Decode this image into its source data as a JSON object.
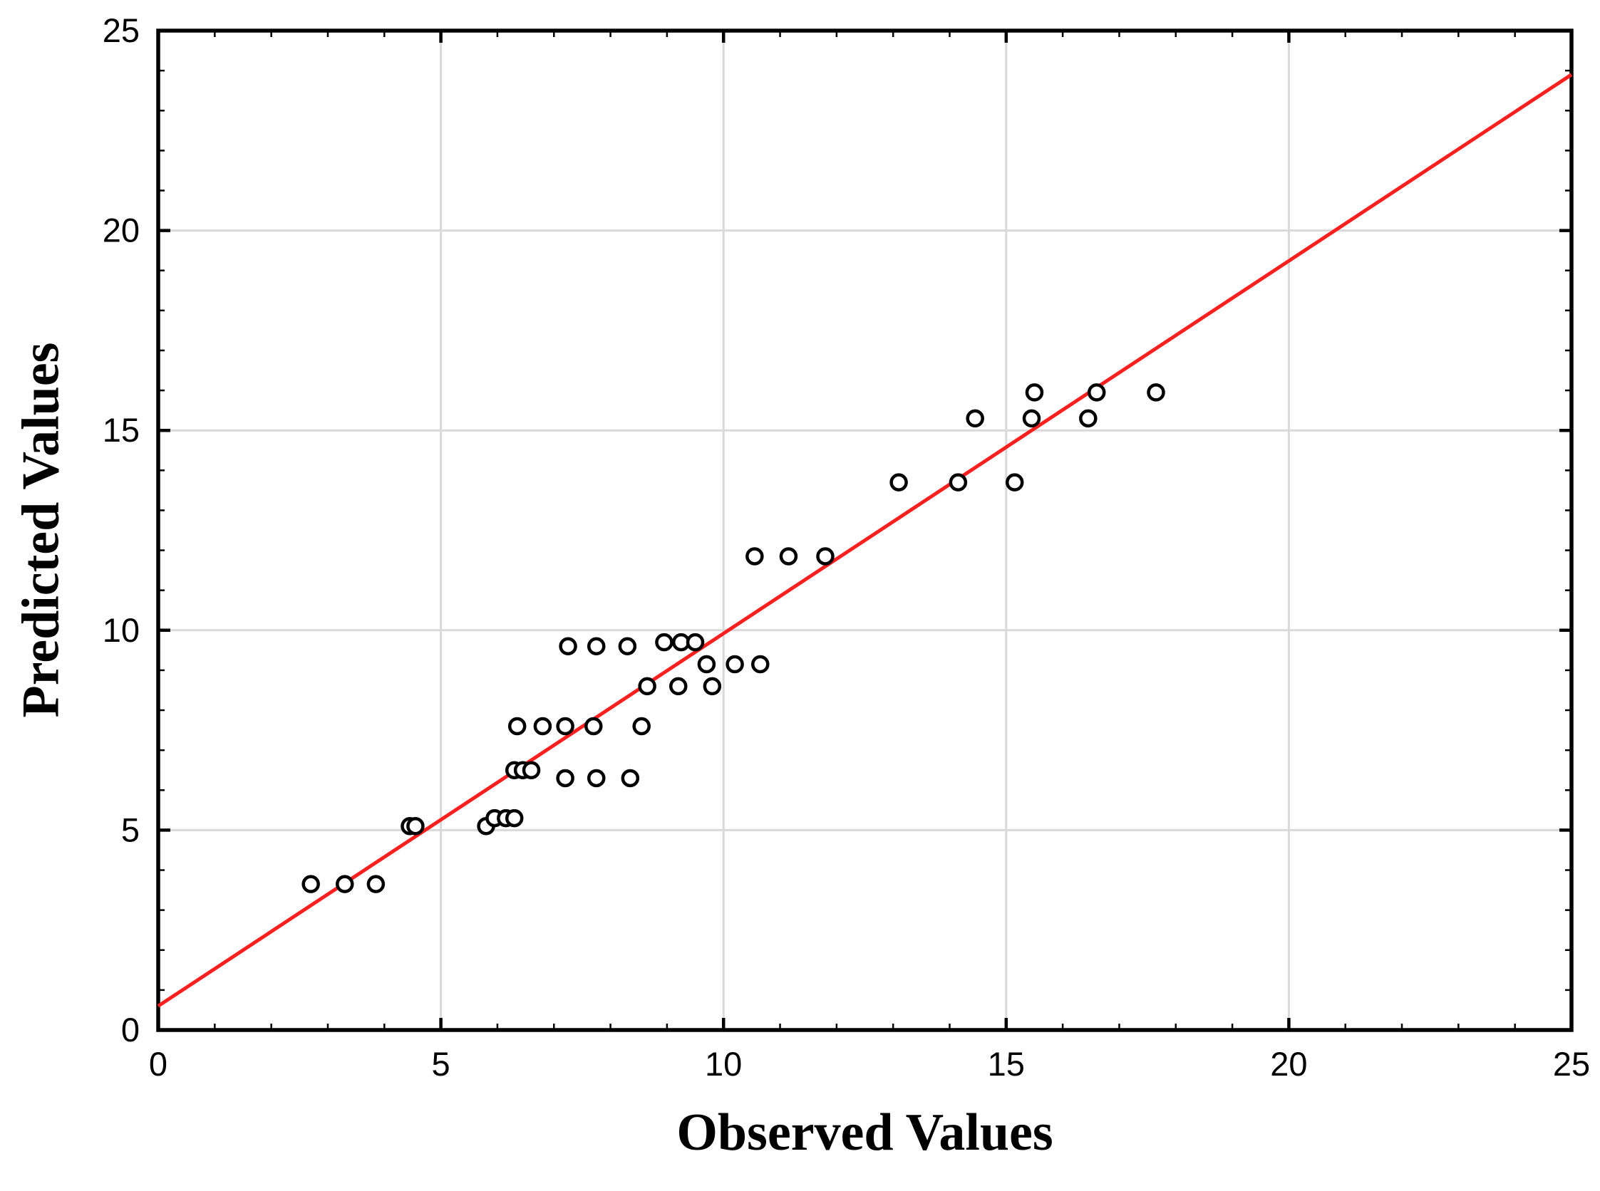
{
  "chart_data": {
    "type": "scatter",
    "title": "",
    "xlabel": "Observed Values",
    "ylabel": "Predicted Values",
    "xlim": [
      0,
      25
    ],
    "ylim": [
      0,
      25
    ],
    "x_major_ticks": [
      0,
      5,
      10,
      15,
      20,
      25
    ],
    "y_major_ticks": [
      0,
      5,
      10,
      15,
      20,
      25
    ],
    "minor_tick_step": 1,
    "grid_values": [
      5,
      10,
      15,
      20
    ],
    "grid": "major gridlines only, light gray",
    "legend": "none",
    "marker_shape": "open-circle",
    "points": [
      {
        "x": 2.7,
        "y": 3.65
      },
      {
        "x": 3.3,
        "y": 3.65
      },
      {
        "x": 3.85,
        "y": 3.65
      },
      {
        "x": 4.45,
        "y": 5.1
      },
      {
        "x": 4.55,
        "y": 5.1
      },
      {
        "x": 5.8,
        "y": 5.1
      },
      {
        "x": 5.95,
        "y": 5.3
      },
      {
        "x": 6.15,
        "y": 5.3
      },
      {
        "x": 6.3,
        "y": 5.3
      },
      {
        "x": 6.3,
        "y": 6.5
      },
      {
        "x": 6.45,
        "y": 6.5
      },
      {
        "x": 6.6,
        "y": 6.5
      },
      {
        "x": 7.2,
        "y": 6.3
      },
      {
        "x": 7.75,
        "y": 6.3
      },
      {
        "x": 8.35,
        "y": 6.3
      },
      {
        "x": 6.35,
        "y": 7.6
      },
      {
        "x": 6.8,
        "y": 7.6
      },
      {
        "x": 7.2,
        "y": 7.6
      },
      {
        "x": 7.7,
        "y": 7.6
      },
      {
        "x": 8.55,
        "y": 7.6
      },
      {
        "x": 8.65,
        "y": 8.6
      },
      {
        "x": 9.2,
        "y": 8.6
      },
      {
        "x": 9.8,
        "y": 8.6
      },
      {
        "x": 9.7,
        "y": 9.15
      },
      {
        "x": 10.2,
        "y": 9.15
      },
      {
        "x": 10.65,
        "y": 9.15
      },
      {
        "x": 7.25,
        "y": 9.6
      },
      {
        "x": 7.75,
        "y": 9.6
      },
      {
        "x": 8.3,
        "y": 9.6
      },
      {
        "x": 8.95,
        "y": 9.7
      },
      {
        "x": 9.25,
        "y": 9.7
      },
      {
        "x": 9.5,
        "y": 9.7
      },
      {
        "x": 10.55,
        "y": 11.85
      },
      {
        "x": 11.15,
        "y": 11.85
      },
      {
        "x": 11.8,
        "y": 11.85
      },
      {
        "x": 13.1,
        "y": 13.7
      },
      {
        "x": 14.15,
        "y": 13.7
      },
      {
        "x": 15.15,
        "y": 13.7
      },
      {
        "x": 14.45,
        "y": 15.3
      },
      {
        "x": 15.45,
        "y": 15.3
      },
      {
        "x": 16.45,
        "y": 15.3
      },
      {
        "x": 15.5,
        "y": 15.95
      },
      {
        "x": 16.6,
        "y": 15.95
      },
      {
        "x": 17.65,
        "y": 15.95
      }
    ],
    "fit_line": {
      "x_start": 0,
      "y_start": 0.6,
      "x_end": 25,
      "y_end": 23.9
    }
  },
  "colors": {
    "background": "#ffffff",
    "axis": "#000000",
    "grid": "#d9d9d9",
    "marker_stroke": "#000000",
    "marker_fill": "#ffffff",
    "fit_line": "#fe1f1f",
    "tick_label": "#000000"
  }
}
